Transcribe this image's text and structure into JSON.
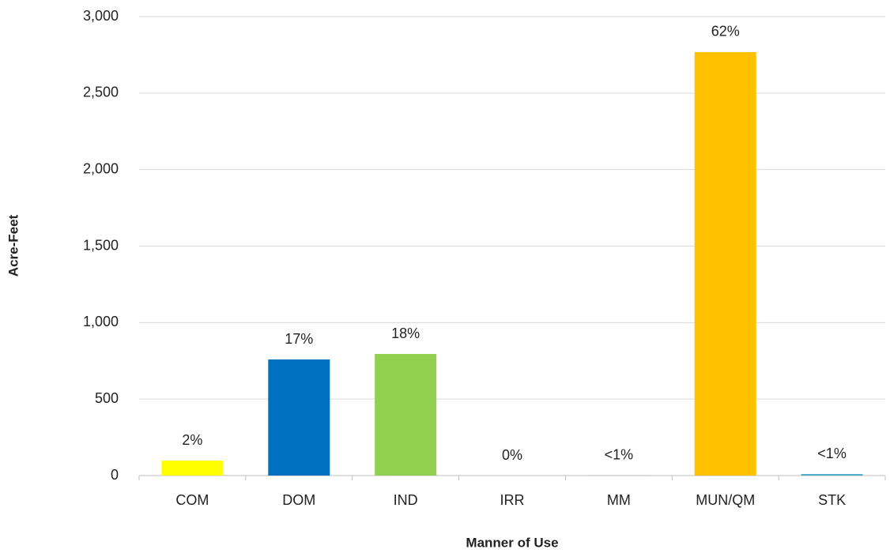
{
  "chart_data": {
    "type": "bar",
    "x_label": "Manner of Use",
    "y_label": "Acre-Feet",
    "categories": [
      "COM",
      "DOM",
      "IND",
      "IRR",
      "MM",
      "MUN/QM",
      "STK"
    ],
    "values": [
      98,
      759,
      795,
      0,
      2,
      2768,
      10
    ],
    "colors": [
      "#ffff00",
      "#0070c0",
      "#92d050",
      "#a5a5a5",
      "#a5a5a5",
      "#ffc000",
      "#4bacc6"
    ],
    "percent_labels": [
      "2%",
      "17%",
      "18%",
      "0%",
      "<1%",
      "62%",
      "<1%"
    ],
    "ylim": [
      0,
      3000
    ],
    "yticks": [
      0,
      500,
      {
        "value": 1000,
        "label": "1,000"
      },
      {
        "value": 1500,
        "label": "1,500"
      },
      {
        "value": 2000,
        "label": "2,000"
      },
      {
        "value": 2500,
        "label": "2,500"
      },
      {
        "value": 3000,
        "label": "3,000"
      }
    ],
    "grid": true
  }
}
